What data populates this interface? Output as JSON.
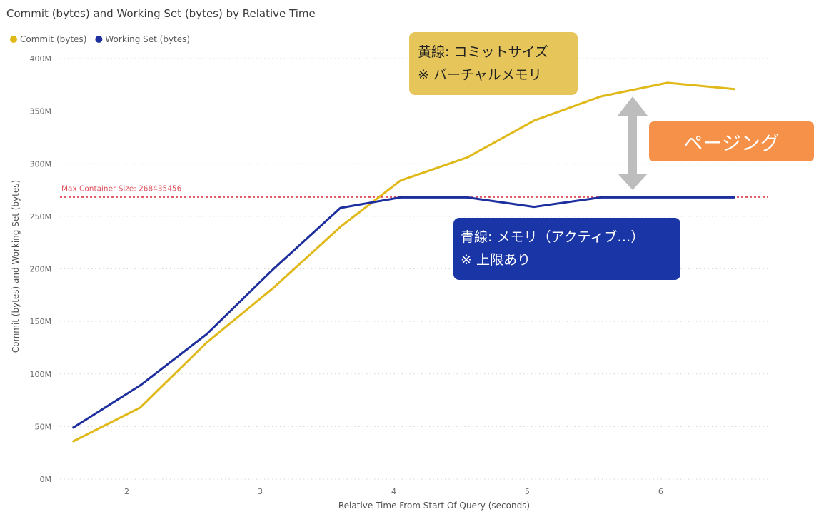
{
  "chart_data": {
    "type": "line",
    "title": "Commit (bytes) and Working Set (bytes) by Relative Time",
    "xlabel": "Relative Time From Start Of Query (seconds)",
    "ylabel": "Commit (bytes) and Working Set (bytes)",
    "x_ticks": [
      2,
      3,
      4,
      5,
      6
    ],
    "x_tick_labels": [
      "2",
      "3",
      "4",
      "5",
      "6"
    ],
    "xlim": [
      1.5,
      6.8
    ],
    "ylim": [
      0,
      400
    ],
    "y_ticks": [
      0,
      50,
      100,
      150,
      200,
      250,
      300,
      350,
      400
    ],
    "y_tick_labels": [
      "0M",
      "50M",
      "100M",
      "150M",
      "200M",
      "250M",
      "300M",
      "350M",
      "400M"
    ],
    "grid": true,
    "legend_position": "top-left",
    "series": [
      {
        "name": "Commit (bytes)",
        "color": "#e0b818",
        "x": [
          1.6,
          2.1,
          2.6,
          3.1,
          3.6,
          4.05,
          4.55,
          5.05,
          5.55,
          6.05,
          6.55
        ],
        "y": [
          36,
          68,
          130,
          182,
          240,
          284,
          306,
          341,
          364,
          377,
          371
        ]
      },
      {
        "name": "Working Set (bytes)",
        "color": "#1d2f9e",
        "x": [
          1.6,
          2.1,
          2.6,
          3.1,
          3.6,
          4.05,
          4.55,
          5.05,
          5.55,
          6.05,
          6.55
        ],
        "y": [
          49,
          89,
          138,
          200,
          258,
          268,
          268,
          259,
          268,
          268,
          268
        ]
      }
    ],
    "reference_line": {
      "label": "Max Container Size: 268435456",
      "value": 268.435456,
      "color": "#e0525e",
      "style": "dotted"
    }
  },
  "annotations": {
    "yellow_callout": {
      "line1": "黄線: コミットサイズ",
      "line2": "※ バーチャルメモリ",
      "color": "#e6c65a"
    },
    "blue_callout": {
      "line1": "青線: メモリ（アクティブ…）",
      "line2": "※ 上限あり",
      "color": "#1a36a6"
    },
    "paging_label": "ページング",
    "paging_color": "#f6914a",
    "arrow_color": "#bdbdbd"
  }
}
